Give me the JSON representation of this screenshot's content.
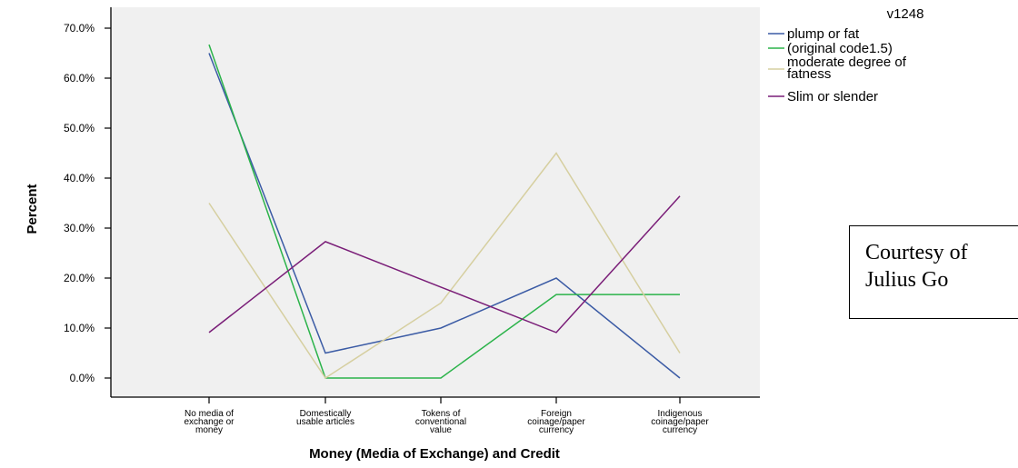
{
  "chart_data": {
    "type": "line",
    "title": "",
    "xlabel": "Money (Media of Exchange) and Credit",
    "ylabel": "Percent",
    "ylim": [
      0,
      70
    ],
    "yticks": [
      "0.0%",
      "10.0%",
      "20.0%",
      "30.0%",
      "40.0%",
      "50.0%",
      "60.0%",
      "70.0%"
    ],
    "categories": [
      [
        "No media of",
        "exchange or",
        "money"
      ],
      [
        "Domestically",
        "usable articles"
      ],
      [
        "Tokens of",
        "conventional",
        "value"
      ],
      [
        "Foreign",
        "coinage/paper",
        "currency"
      ],
      [
        "Indigenous",
        "coinage/paper",
        "currency"
      ]
    ],
    "legend_title": "v1248",
    "legend_position": "top-right",
    "series": [
      {
        "name": "plump or fat",
        "color": "#3b5ba5",
        "values": [
          65.0,
          5.0,
          10.0,
          20.0,
          0.0
        ]
      },
      {
        "name": "(original code1.5)",
        "color": "#2bb34a",
        "values": [
          66.7,
          0.0,
          0.0,
          16.7,
          16.7
        ]
      },
      {
        "name": "moderate degree of fatness",
        "color": "#d6cfa0",
        "values": [
          35.0,
          0.0,
          15.0,
          45.0,
          5.0
        ]
      },
      {
        "name": "Slim or slender",
        "color": "#7a1e78",
        "values": [
          9.1,
          27.3,
          18.2,
          9.1,
          36.4
        ]
      }
    ],
    "plot_background": "#f0f0f0",
    "grid": false
  },
  "annotation": {
    "line1": "Courtesy of",
    "line2": "Julius Go"
  }
}
